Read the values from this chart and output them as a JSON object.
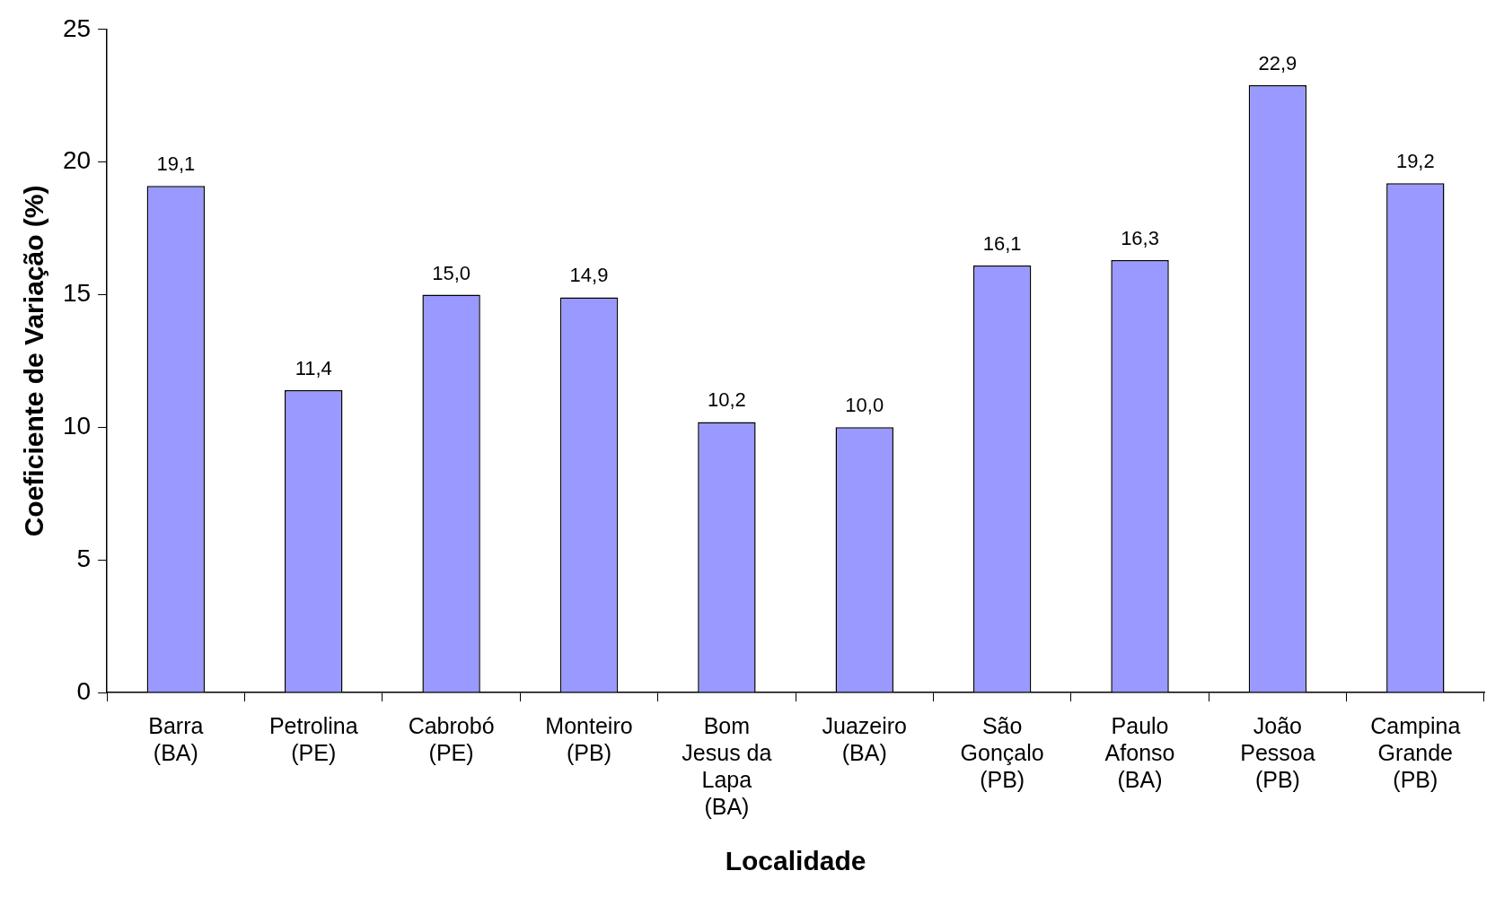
{
  "chart_data": {
    "type": "bar",
    "xlabel": "Localidade",
    "ylabel": "Coeficiente de Variação (%)",
    "categories": [
      "Barra (BA)",
      "Petrolina (PE)",
      "Cabrobó (PE)",
      "Monteiro (PB)",
      "Bom Jesus da Lapa (BA)",
      "Juazeiro (BA)",
      "São Gonçalo (PB)",
      "Paulo Afonso (BA)",
      "João Pessoa (PB)",
      "Campina Grande (PB)"
    ],
    "values": [
      19.1,
      11.4,
      15.0,
      14.9,
      10.2,
      10.0,
      16.1,
      16.3,
      22.9,
      19.2
    ],
    "value_labels": [
      "19,1",
      "11,4",
      "15,0",
      "14,9",
      "10,2",
      "10,0",
      "16,1",
      "16,3",
      "22,9",
      "19,2"
    ],
    "color": "#9999ff",
    "ylim": [
      0,
      25
    ],
    "yticks": [
      0,
      5,
      10,
      15,
      20,
      25
    ],
    "grid": false,
    "legend": false
  }
}
